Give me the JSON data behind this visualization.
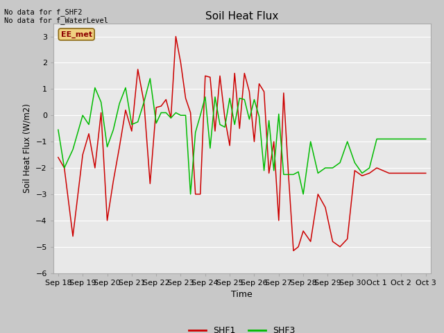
{
  "title": "Soil Heat Flux",
  "ylabel": "Soil Heat Flux (W/m2)",
  "xlabel": "Time",
  "ylim": [
    -6.0,
    3.5
  ],
  "yticks": [
    -6.0,
    -5.0,
    -4.0,
    -3.0,
    -2.0,
    -1.0,
    0.0,
    1.0,
    2.0,
    3.0
  ],
  "fig_bg_color": "#c8c8c8",
  "plot_bg_color": "#e8e8e8",
  "grid_color": "#ffffff",
  "annotation_text": "No data for f_SHF2\nNo data for f_WaterLevel",
  "label_box_text": "EE_met",
  "legend_labels": [
    "SHF1",
    "SHF3"
  ],
  "shf1_color": "#cc0000",
  "shf3_color": "#00bb00",
  "xtick_labels": [
    "Sep 18",
    "Sep 19",
    "Sep 20",
    "Sep 21",
    "Sep 22",
    "Sep 23",
    "Sep 24",
    "Sep 25",
    "Sep 26",
    "Sep 27",
    "Sep 28",
    "Sep 29",
    "Sep 30",
    "Oct 1",
    "Oct 2",
    "Oct 3"
  ],
  "shf1_x": [
    0,
    0.25,
    0.6,
    1.0,
    1.25,
    1.5,
    1.75,
    2.0,
    2.25,
    2.5,
    2.75,
    3.0,
    3.25,
    3.5,
    3.75,
    4.0,
    4.2,
    4.4,
    4.6,
    4.8,
    5.0,
    5.2,
    5.4,
    5.6,
    5.8,
    6.0,
    6.2,
    6.4,
    6.6,
    6.8,
    7.0,
    7.2,
    7.4,
    7.6,
    7.8,
    8.0,
    8.2,
    8.4,
    8.6,
    8.8,
    9.0,
    9.2,
    9.4,
    9.6,
    9.8,
    10.0,
    10.3,
    10.6,
    10.9,
    11.2,
    11.5,
    11.8,
    12.1,
    12.4,
    12.7,
    13.0,
    13.5,
    14.0,
    14.5,
    15.0
  ],
  "shf1_y": [
    -1.6,
    -2.0,
    -4.6,
    -1.5,
    -0.7,
    -2.0,
    0.1,
    -4.0,
    -2.5,
    -1.2,
    0.2,
    -0.6,
    1.75,
    0.5,
    -2.6,
    0.3,
    0.35,
    0.6,
    -0.1,
    3.0,
    2.0,
    0.65,
    0.1,
    -3.0,
    -3.0,
    1.5,
    1.45,
    -0.6,
    1.5,
    -0.1,
    -1.15,
    1.6,
    -0.5,
    1.6,
    0.9,
    -1.0,
    1.2,
    0.9,
    -2.2,
    -1.0,
    -4.0,
    0.85,
    -2.3,
    -5.15,
    -5.0,
    -4.4,
    -4.8,
    -3.0,
    -3.5,
    -4.8,
    -5.0,
    -4.7,
    -2.1,
    -2.3,
    -2.2,
    -2.0,
    -2.2,
    -2.2,
    -2.2,
    -2.2
  ],
  "shf3_x": [
    0,
    0.25,
    0.6,
    1.0,
    1.25,
    1.5,
    1.75,
    2.0,
    2.25,
    2.5,
    2.75,
    3.0,
    3.25,
    3.5,
    3.75,
    4.0,
    4.2,
    4.4,
    4.6,
    4.8,
    5.0,
    5.2,
    5.4,
    5.6,
    5.8,
    6.0,
    6.2,
    6.4,
    6.6,
    6.8,
    7.0,
    7.2,
    7.4,
    7.6,
    7.8,
    8.0,
    8.2,
    8.4,
    8.6,
    8.8,
    9.0,
    9.2,
    9.4,
    9.6,
    9.8,
    10.0,
    10.3,
    10.6,
    10.9,
    11.2,
    11.5,
    11.8,
    12.1,
    12.4,
    12.7,
    13.0,
    13.5,
    14.0,
    14.5,
    15.0
  ],
  "shf3_y": [
    -0.55,
    -2.0,
    -1.3,
    0.0,
    -0.35,
    1.05,
    0.5,
    -1.2,
    -0.55,
    0.45,
    1.05,
    -0.35,
    -0.25,
    0.5,
    1.4,
    -0.3,
    0.1,
    0.1,
    -0.1,
    0.1,
    0.0,
    0.0,
    -3.0,
    -0.65,
    0.0,
    0.7,
    -1.25,
    0.7,
    -0.35,
    -0.45,
    0.65,
    -0.35,
    0.65,
    0.6,
    -0.15,
    0.6,
    -0.05,
    -2.1,
    -0.2,
    -2.1,
    0.05,
    -2.25,
    -2.25,
    -2.25,
    -2.15,
    -3.0,
    -1.0,
    -2.2,
    -2.0,
    -2.0,
    -1.8,
    -1.0,
    -1.8,
    -2.2,
    -2.0,
    -0.9,
    -0.9,
    -0.9,
    -0.9,
    -0.9
  ]
}
